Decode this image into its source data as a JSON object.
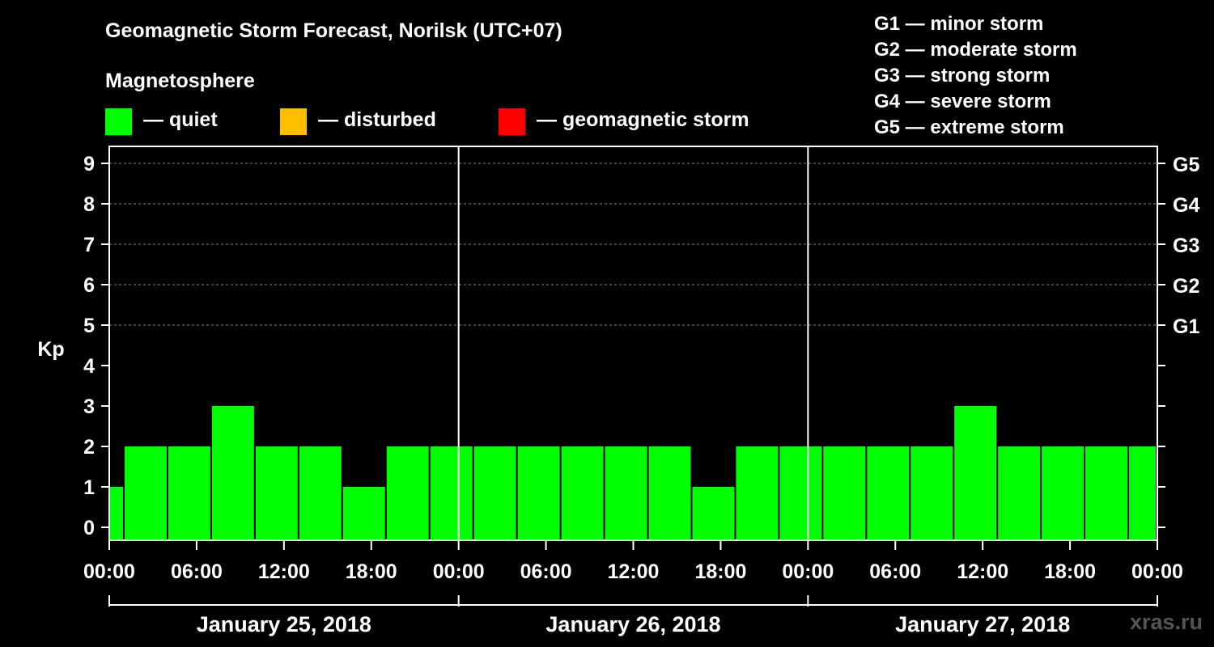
{
  "title": "Geomagnetic Storm Forecast, Norilsk (UTC+07)",
  "magnetosphere_title": "Magnetosphere",
  "legend": [
    {
      "label": "— quiet",
      "color": "#00ff00"
    },
    {
      "label": "— disturbed",
      "color": "#ffbf00"
    },
    {
      "label": "— geomagnetic storm",
      "color": "#ff0000"
    }
  ],
  "g_scale": [
    "G1 — minor storm",
    "G2 — moderate storm",
    "G3 — strong storm",
    "G4 — severe storm",
    "G5 — extreme storm"
  ],
  "watermark": "xras.ru",
  "chart_data": {
    "type": "bar",
    "title": "Geomagnetic Storm Forecast, Norilsk (UTC+07)",
    "ylabel": "Kp",
    "ylim": [
      0,
      9
    ],
    "y_ticks": [
      "0",
      "1",
      "2",
      "3",
      "4",
      "5",
      "6",
      "7",
      "8",
      "9"
    ],
    "right_ticks": [
      {
        "kp": 5,
        "label": "G1"
      },
      {
        "kp": 6,
        "label": "G2"
      },
      {
        "kp": 7,
        "label": "G3"
      },
      {
        "kp": 8,
        "label": "G4"
      },
      {
        "kp": 9,
        "label": "G5"
      }
    ],
    "x_hours_start": 0,
    "x_hours_end": 72,
    "x_tick_labels": [
      "00:00",
      "06:00",
      "12:00",
      "18:00",
      "00:00",
      "06:00",
      "12:00",
      "18:00",
      "00:00",
      "06:00",
      "12:00",
      "18:00",
      "00:00"
    ],
    "days": [
      "January 25, 2018",
      "January 26, 2018",
      "January 27, 2018"
    ],
    "bars": [
      {
        "start": 0,
        "end": 1,
        "kp": 1
      },
      {
        "start": 1,
        "end": 4,
        "kp": 2
      },
      {
        "start": 4,
        "end": 7,
        "kp": 2
      },
      {
        "start": 7,
        "end": 10,
        "kp": 3
      },
      {
        "start": 10,
        "end": 13,
        "kp": 2
      },
      {
        "start": 13,
        "end": 16,
        "kp": 2
      },
      {
        "start": 16,
        "end": 19,
        "kp": 1
      },
      {
        "start": 19,
        "end": 22,
        "kp": 2
      },
      {
        "start": 22,
        "end": 25,
        "kp": 2
      },
      {
        "start": 25,
        "end": 28,
        "kp": 2
      },
      {
        "start": 28,
        "end": 31,
        "kp": 2
      },
      {
        "start": 31,
        "end": 34,
        "kp": 2
      },
      {
        "start": 34,
        "end": 37,
        "kp": 2
      },
      {
        "start": 37,
        "end": 40,
        "kp": 2
      },
      {
        "start": 40,
        "end": 43,
        "kp": 1
      },
      {
        "start": 43,
        "end": 46,
        "kp": 2
      },
      {
        "start": 46,
        "end": 49,
        "kp": 2
      },
      {
        "start": 49,
        "end": 52,
        "kp": 2
      },
      {
        "start": 52,
        "end": 55,
        "kp": 2
      },
      {
        "start": 55,
        "end": 58,
        "kp": 2
      },
      {
        "start": 58,
        "end": 61,
        "kp": 3
      },
      {
        "start": 61,
        "end": 64,
        "kp": 2
      },
      {
        "start": 64,
        "end": 67,
        "kp": 2
      },
      {
        "start": 67,
        "end": 70,
        "kp": 2
      },
      {
        "start": 70,
        "end": 72,
        "kp": 2
      }
    ],
    "bar_color": "#00ff00"
  }
}
